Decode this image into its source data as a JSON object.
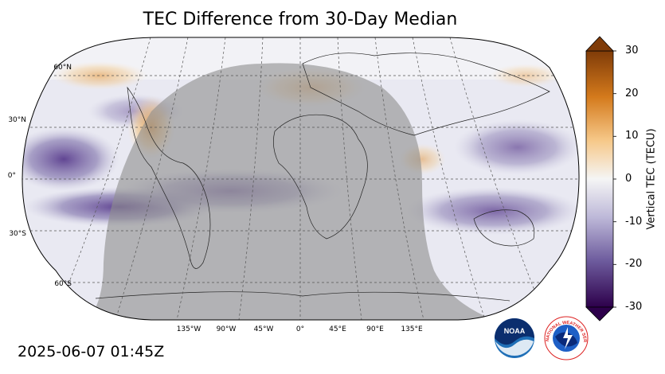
{
  "title": "TEC Difference from 30-Day Median",
  "timestamp": "2025-06-07 01:45Z",
  "colorbar": {
    "label": "Vertical TEC (TECU)",
    "ticks": [
      "30",
      "20",
      "10",
      "0",
      "-10",
      "-20",
      "-30"
    ],
    "range": [
      -30,
      30
    ]
  },
  "map": {
    "projection": "Robinson",
    "lat_labels": [
      "60°N",
      "30°N",
      "0°",
      "30°S",
      "60°S"
    ],
    "lon_labels": [
      "135°W",
      "90°W",
      "45°W",
      "0°",
      "45°E",
      "90°E",
      "135°E"
    ],
    "night_shading": true
  },
  "logos": {
    "noaa_text": "NOAA",
    "nws_text": "NATIONAL WEATHER SERVICE"
  },
  "colors": {
    "negative_dark": "#3b0f5c",
    "negative_mid": "#8b7fb3",
    "neutral": "#f4f4f4",
    "positive_mid": "#f0b060",
    "positive_dark": "#7f3b08",
    "night_shade": "#9a9a9a"
  }
}
